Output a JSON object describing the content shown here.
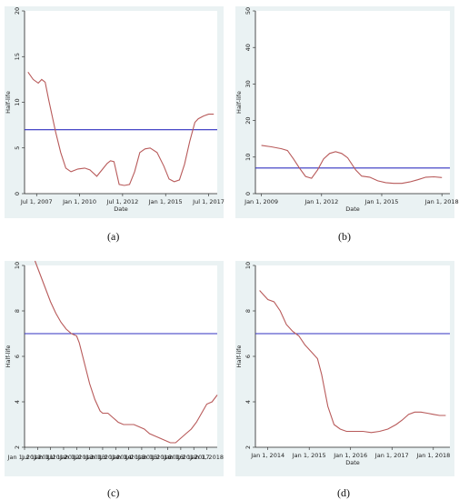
{
  "chart_data": [
    {
      "type": "line",
      "panel": "(a)",
      "xlabel": "Date",
      "ylabel": "Half-life",
      "xlim": [
        2006.8,
        2018.0
      ],
      "ylim": [
        0,
        20
      ],
      "yticks": [
        0,
        5,
        10,
        15,
        20
      ],
      "xticks": [
        {
          "v": 2007.5,
          "label": "Jul 1, 2007"
        },
        {
          "v": 2010.0,
          "label": "Jan 1, 2010"
        },
        {
          "v": 2012.5,
          "label": "Jul 1, 2012"
        },
        {
          "v": 2015.0,
          "label": "Jan 1, 2015"
        },
        {
          "v": 2017.5,
          "label": "Jul 1, 2017"
        }
      ],
      "hline": 7,
      "series": [
        {
          "x": [
            2007.0,
            2007.3,
            2007.6,
            2007.8,
            2008.0,
            2008.2,
            2008.6,
            2008.9,
            2009.2,
            2009.5,
            2009.9,
            2010.3,
            2010.6,
            2011.0,
            2011.3,
            2011.6,
            2011.8,
            2012.0,
            2012.3,
            2012.6,
            2012.9,
            2013.2,
            2013.5,
            2013.8,
            2014.1,
            2014.5,
            2014.9,
            2015.2,
            2015.5,
            2015.8,
            2016.1,
            2016.4,
            2016.7,
            2016.9,
            2017.2,
            2017.5,
            2017.8
          ],
          "y": [
            13.3,
            12.5,
            12.1,
            12.5,
            12.2,
            10.3,
            6.8,
            4.5,
            2.8,
            2.4,
            2.7,
            2.8,
            2.6,
            1.9,
            2.6,
            3.3,
            3.6,
            3.5,
            1.0,
            0.9,
            1.0,
            2.4,
            4.5,
            4.9,
            5.0,
            4.5,
            3.0,
            1.6,
            1.3,
            1.5,
            3.2,
            5.7,
            7.8,
            8.2,
            8.5,
            8.7,
            8.7
          ]
        }
      ]
    },
    {
      "type": "line",
      "panel": "(b)",
      "xlabel": "Date",
      "ylabel": "Half-life",
      "xlim": [
        2008.7,
        2018.4
      ],
      "ylim": [
        0,
        50
      ],
      "yticks": [
        0,
        10,
        20,
        30,
        40,
        50
      ],
      "xticks": [
        {
          "v": 2009.0,
          "label": "Jan 1, 2009"
        },
        {
          "v": 2012.0,
          "label": "Jan 1, 2012"
        },
        {
          "v": 2015.0,
          "label": "Jan 1, 2015"
        },
        {
          "v": 2018.0,
          "label": "Jan 1, 2018"
        }
      ],
      "hline": 7,
      "series": [
        {
          "x": [
            2009.0,
            2009.5,
            2010.0,
            2010.3,
            2010.6,
            2010.9,
            2011.2,
            2011.5,
            2011.8,
            2012.1,
            2012.4,
            2012.7,
            2013.0,
            2013.3,
            2013.7,
            2014.0,
            2014.4,
            2014.8,
            2015.2,
            2015.6,
            2016.0,
            2016.4,
            2016.8,
            2017.2,
            2017.6,
            2018.0
          ],
          "y": [
            13.2,
            12.8,
            12.3,
            11.8,
            9.5,
            7.0,
            4.7,
            4.2,
            6.5,
            9.5,
            11.0,
            11.5,
            11.0,
            9.8,
            6.5,
            4.8,
            4.5,
            3.5,
            3.0,
            2.8,
            2.8,
            3.2,
            3.8,
            4.5,
            4.6,
            4.4
          ]
        }
      ]
    },
    {
      "type": "line",
      "panel": "(c)",
      "xlabel": "",
      "ylabel": "Half-life",
      "xlim": [
        2011.0,
        2018.4
      ],
      "ylim": [
        2,
        10
      ],
      "yticks": [
        2,
        4,
        6,
        8,
        10
      ],
      "xticks": [
        {
          "v": 2011.0,
          "label": "Jan 1, 2011"
        },
        {
          "v": 2011.5,
          "label": "Jul 1, 2011"
        },
        {
          "v": 2012.0,
          "label": "Jan 1, 2012"
        },
        {
          "v": 2012.5,
          "label": "Jul 1, 2012"
        },
        {
          "v": 2013.0,
          "label": "Jan 1, 2013"
        },
        {
          "v": 2013.5,
          "label": "Jul 1, 2013"
        },
        {
          "v": 2014.0,
          "label": "Jan 1, 2014"
        },
        {
          "v": 2014.5,
          "label": "Jul 1, 2014"
        },
        {
          "v": 2015.0,
          "label": "Jan 1, 2015"
        },
        {
          "v": 2015.5,
          "label": "Jul 1, 2015"
        },
        {
          "v": 2016.0,
          "label": "Jan 1, 2016"
        },
        {
          "v": 2016.5,
          "label": "Jul 1, 2016"
        },
        {
          "v": 2017.0,
          "label": "Jan 1, 2017"
        },
        {
          "v": 2017.5,
          "label": "Jul 1, 2017"
        },
        {
          "v": 2018.0,
          "label": "Jan 1, 2018"
        }
      ],
      "hline": 7,
      "series": [
        {
          "x": [
            2011.4,
            2011.6,
            2011.8,
            2012.0,
            2012.2,
            2012.4,
            2012.6,
            2012.8,
            2013.0,
            2013.1,
            2013.3,
            2013.5,
            2013.7,
            2013.9,
            2014.0,
            2014.2,
            2014.4,
            2014.6,
            2014.8,
            2015.0,
            2015.2,
            2015.4,
            2015.6,
            2015.8,
            2016.0,
            2016.2,
            2016.4,
            2016.6,
            2016.8,
            2017.0,
            2017.2,
            2017.4,
            2017.6,
            2017.8,
            2018.0,
            2018.2,
            2018.4
          ],
          "y": [
            10.2,
            9.6,
            9.0,
            8.4,
            7.9,
            7.5,
            7.2,
            7.0,
            6.9,
            6.6,
            5.7,
            4.8,
            4.1,
            3.6,
            3.5,
            3.5,
            3.3,
            3.1,
            3.0,
            3.0,
            3.0,
            2.9,
            2.8,
            2.6,
            2.5,
            2.4,
            2.3,
            2.2,
            2.2,
            2.4,
            2.6,
            2.8,
            3.1,
            3.5,
            3.9,
            4.0,
            4.3
          ]
        }
      ]
    },
    {
      "type": "line",
      "panel": "(d)",
      "xlabel": "Date",
      "ylabel": "Half-life",
      "xlim": [
        2013.7,
        2018.4
      ],
      "ylim": [
        2,
        10
      ],
      "yticks": [
        2,
        4,
        6,
        8,
        10
      ],
      "xticks": [
        {
          "v": 2014.0,
          "label": "Jan 1, 2014"
        },
        {
          "v": 2015.0,
          "label": "Jan 1, 2015"
        },
        {
          "v": 2016.0,
          "label": "Jan 1, 2016"
        },
        {
          "v": 2017.0,
          "label": "Jan 1, 2017"
        },
        {
          "v": 2018.0,
          "label": "Jan 1, 2018"
        }
      ],
      "hline": 7,
      "series": [
        {
          "x": [
            2013.8,
            2013.9,
            2014.0,
            2014.15,
            2014.3,
            2014.45,
            2014.6,
            2014.75,
            2014.9,
            2015.05,
            2015.2,
            2015.3,
            2015.45,
            2015.6,
            2015.75,
            2015.9,
            2016.1,
            2016.3,
            2016.5,
            2016.7,
            2016.9,
            2017.1,
            2017.25,
            2017.4,
            2017.55,
            2017.7,
            2017.85,
            2018.0,
            2018.15,
            2018.3
          ],
          "y": [
            8.9,
            8.7,
            8.5,
            8.4,
            8.0,
            7.4,
            7.1,
            6.9,
            6.5,
            6.2,
            5.9,
            5.2,
            3.8,
            3.0,
            2.8,
            2.7,
            2.7,
            2.7,
            2.65,
            2.7,
            2.8,
            3.0,
            3.2,
            3.45,
            3.55,
            3.55,
            3.5,
            3.45,
            3.4,
            3.4
          ]
        }
      ]
    }
  ]
}
